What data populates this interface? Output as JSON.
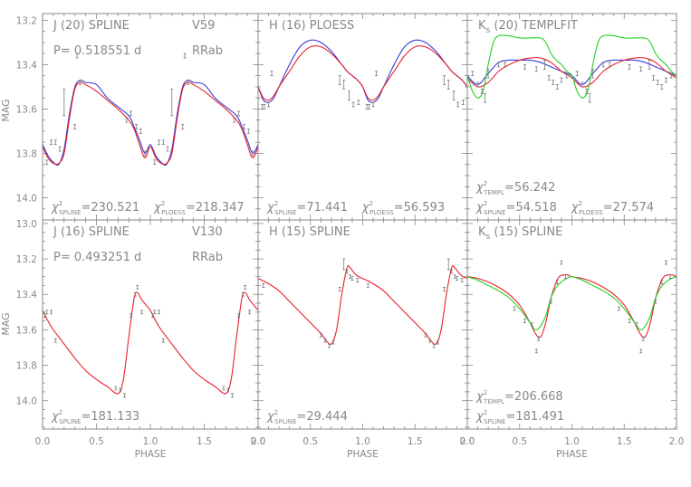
{
  "figure": {
    "ylabel": "MAG",
    "xlabel": "PHASE",
    "y_ticks_top": [
      "13.2",
      "13.4",
      "13.6",
      "13.8",
      "14.0"
    ],
    "y_ticks_bottom": [
      "13.0",
      "13.2",
      "13.4",
      "13.6",
      "13.8",
      "14.0"
    ],
    "x_ticks": [
      "0.0",
      "0.5",
      "1.0",
      "1.5",
      "2.0"
    ]
  },
  "colors": {
    "spline": "#e8202a",
    "ploess": "#3c3cd8",
    "template": "#22d022",
    "frame": "#888888",
    "text": "#888888"
  },
  "chart_data": [
    {
      "type": "line",
      "row": 0,
      "col": 0,
      "xlim": [
        0,
        2
      ],
      "ylim": [
        14.1,
        13.2
      ],
      "labels": [
        {
          "text": "J (20) SPLINE"
        },
        {
          "text": "V59"
        },
        {
          "text": "P= 0.518551 d"
        },
        {
          "text": "RRab"
        }
      ],
      "chi_lines": [
        [
          {
            "base": "χ",
            "sub": "SPLINE",
            "val": "=230.521"
          },
          {
            "base": "χ",
            "sub": "PLOESS",
            "val": "=218.347"
          }
        ]
      ],
      "series": [
        {
          "color": "blue",
          "x": [
            0.0,
            0.05,
            0.1,
            0.15,
            0.2,
            0.25,
            0.3,
            0.35,
            0.4,
            0.5,
            0.6,
            0.7,
            0.8,
            0.85,
            0.9,
            0.95,
            1.0
          ],
          "y": [
            13.76,
            13.81,
            13.84,
            13.85,
            13.78,
            13.62,
            13.5,
            13.47,
            13.48,
            13.49,
            13.55,
            13.59,
            13.63,
            13.68,
            13.74,
            13.8,
            13.76
          ]
        },
        {
          "color": "red",
          "x": [
            0.0,
            0.05,
            0.1,
            0.15,
            0.2,
            0.25,
            0.3,
            0.35,
            0.4,
            0.5,
            0.6,
            0.7,
            0.8,
            0.85,
            0.9,
            0.95,
            1.0
          ],
          "y": [
            13.77,
            13.82,
            13.845,
            13.845,
            13.8,
            13.64,
            13.51,
            13.48,
            13.49,
            13.52,
            13.56,
            13.6,
            13.65,
            13.69,
            13.76,
            13.82,
            13.77
          ]
        }
      ],
      "points": {
        "x": [
          0.04,
          0.08,
          0.12,
          0.16,
          0.2,
          0.3,
          0.32,
          0.35,
          0.78,
          0.82,
          0.87,
          0.91,
          0.95
        ],
        "y": [
          13.84,
          13.75,
          13.75,
          13.78,
          13.57,
          13.68,
          13.36,
          13.48,
          13.65,
          13.62,
          13.68,
          13.7,
          13.8
        ],
        "err": [
          0.01,
          0.01,
          0.01,
          0.01,
          0.06,
          0.01,
          0.01,
          0.01,
          0.01,
          0.01,
          0.01,
          0.01,
          0.01
        ]
      }
    },
    {
      "type": "line",
      "row": 0,
      "col": 1,
      "xlim": [
        0,
        2
      ],
      "ylim": [
        14.1,
        13.2
      ],
      "labels": [
        {
          "text": "H (16) PLOESS"
        }
      ],
      "chi_lines": [
        [
          {
            "base": "χ",
            "sub": "SPLINE",
            "val": "=71.441"
          },
          {
            "base": "χ",
            "sub": "PLOESS",
            "val": "=56.593"
          }
        ]
      ],
      "series": [
        {
          "color": "blue",
          "x": [
            0.0,
            0.05,
            0.1,
            0.15,
            0.2,
            0.3,
            0.4,
            0.5,
            0.6,
            0.7,
            0.8,
            0.85,
            0.9,
            0.95,
            1.0
          ],
          "y": [
            13.5,
            13.56,
            13.57,
            13.55,
            13.5,
            13.4,
            13.32,
            13.29,
            13.3,
            13.34,
            13.4,
            13.43,
            13.45,
            13.47,
            13.5
          ]
        },
        {
          "color": "red",
          "x": [
            0.0,
            0.05,
            0.1,
            0.15,
            0.2,
            0.3,
            0.4,
            0.5,
            0.6,
            0.7,
            0.8,
            0.85,
            0.9,
            0.95,
            1.0
          ],
          "y": [
            13.5,
            13.55,
            13.56,
            13.54,
            13.5,
            13.43,
            13.36,
            13.32,
            13.32,
            13.35,
            13.4,
            13.43,
            13.45,
            13.47,
            13.5
          ]
        }
      ],
      "points": {
        "x": [
          0.04,
          0.06,
          0.1,
          0.13,
          0.78,
          0.82,
          0.87,
          0.91,
          0.96
        ],
        "y": [
          13.59,
          13.59,
          13.58,
          13.44,
          13.47,
          13.49,
          13.54,
          13.58,
          13.57
        ],
        "err": [
          0.01,
          0.01,
          0.01,
          0.01,
          0.02,
          0.02,
          0.02,
          0.01,
          0.01
        ]
      }
    },
    {
      "type": "line",
      "row": 0,
      "col": 2,
      "xlim": [
        0,
        2
      ],
      "ylim": [
        14.1,
        13.2
      ],
      "labels": [
        {
          "text": "K",
          "sub": "s",
          "rest": " (20) TEMPLFIT"
        }
      ],
      "chi_lines": [
        [
          {
            "base": "χ",
            "sub": "TEMPL",
            "val": "=56.242"
          }
        ],
        [
          {
            "base": "χ",
            "sub": "SPLINE",
            "val": "=54.518"
          },
          {
            "base": "χ",
            "sub": "PLOESS",
            "val": "=27.574"
          }
        ]
      ],
      "series": [
        {
          "color": "blue",
          "x": [
            0.0,
            0.1,
            0.2,
            0.3,
            0.4,
            0.5,
            0.6,
            0.7,
            0.8,
            0.9,
            1.0
          ],
          "y": [
            13.45,
            13.49,
            13.44,
            13.39,
            13.38,
            13.38,
            13.38,
            13.39,
            13.41,
            13.43,
            13.45
          ]
        },
        {
          "color": "red",
          "x": [
            0.0,
            0.1,
            0.2,
            0.3,
            0.4,
            0.5,
            0.6,
            0.7,
            0.8,
            0.9,
            1.0
          ],
          "y": [
            13.46,
            13.5,
            13.48,
            13.43,
            13.4,
            13.38,
            13.37,
            13.37,
            13.39,
            13.43,
            13.46
          ]
        },
        {
          "color": "green",
          "x": [
            0.0,
            0.05,
            0.1,
            0.15,
            0.2,
            0.25,
            0.3,
            0.4,
            0.5,
            0.6,
            0.7,
            0.75,
            0.8,
            0.85,
            0.9,
            0.95,
            1.0
          ],
          "y": [
            13.45,
            13.52,
            13.55,
            13.52,
            13.4,
            13.3,
            13.27,
            13.27,
            13.28,
            13.28,
            13.28,
            13.3,
            13.35,
            13.38,
            13.4,
            13.43,
            13.45
          ]
        }
      ],
      "points": {
        "x": [
          0.05,
          0.1,
          0.14,
          0.17,
          0.2,
          0.3,
          0.36,
          0.55,
          0.66,
          0.74,
          0.78,
          0.82,
          0.86,
          0.9,
          0.95
        ],
        "y": [
          13.44,
          13.49,
          13.52,
          13.55,
          13.44,
          13.4,
          13.4,
          13.41,
          13.42,
          13.4,
          13.46,
          13.48,
          13.5,
          13.47,
          13.45
        ],
        "err": [
          0.01,
          0.01,
          0.01,
          0.02,
          0.02,
          0.01,
          0.01,
          0.01,
          0.01,
          0.02,
          0.01,
          0.01,
          0.01,
          0.01,
          0.01
        ]
      }
    },
    {
      "type": "line",
      "row": 1,
      "col": 0,
      "xlim": [
        0,
        2
      ],
      "ylim": [
        14.1,
        13.0
      ],
      "labels": [
        {
          "text": "J (16) SPLINE"
        },
        {
          "text": "V130"
        },
        {
          "text": "P= 0.493251 d"
        },
        {
          "text": "RRab"
        }
      ],
      "chi_lines": [
        [
          {
            "base": "χ",
            "sub": "SPLINE",
            "val": "=181.133"
          }
        ]
      ],
      "series": [
        {
          "color": "red",
          "x": [
            0.0,
            0.05,
            0.1,
            0.15,
            0.2,
            0.3,
            0.4,
            0.5,
            0.6,
            0.7,
            0.75,
            0.8,
            0.85,
            0.88,
            0.92,
            0.96,
            1.0
          ],
          "y": [
            13.49,
            13.55,
            13.6,
            13.64,
            13.68,
            13.76,
            13.83,
            13.88,
            13.92,
            13.96,
            13.88,
            13.64,
            13.42,
            13.39,
            13.43,
            13.46,
            13.49
          ]
        }
      ],
      "points": {
        "x": [
          0.02,
          0.04,
          0.08,
          0.12,
          0.68,
          0.72,
          0.76,
          0.82,
          0.86,
          0.88,
          0.92
        ],
        "y": [
          13.52,
          13.5,
          13.5,
          13.66,
          13.93,
          13.94,
          13.97,
          13.52,
          13.4,
          13.36,
          13.5
        ],
        "err": [
          0.01,
          0.01,
          0.01,
          0.01,
          0.01,
          0.01,
          0.01,
          0.01,
          0.01,
          0.01,
          0.01
        ]
      }
    },
    {
      "type": "line",
      "row": 1,
      "col": 1,
      "xlim": [
        0,
        2
      ],
      "ylim": [
        14.1,
        13.0
      ],
      "labels": [
        {
          "text": "H (15) SPLINE"
        }
      ],
      "chi_lines": [
        [
          {
            "base": "χ",
            "sub": "SPLINE",
            "val": "=29.444"
          }
        ]
      ],
      "series": [
        {
          "color": "red",
          "x": [
            0.0,
            0.1,
            0.2,
            0.3,
            0.4,
            0.5,
            0.6,
            0.65,
            0.7,
            0.75,
            0.8,
            0.85,
            0.88,
            0.92,
            0.96,
            1.0
          ],
          "y": [
            13.31,
            13.34,
            13.38,
            13.44,
            13.5,
            13.56,
            13.62,
            13.66,
            13.68,
            13.6,
            13.4,
            13.25,
            13.25,
            13.28,
            13.3,
            13.31
          ]
        }
      ],
      "points": {
        "x": [
          0.05,
          0.6,
          0.64,
          0.68,
          0.72,
          0.78,
          0.82,
          0.85,
          0.88,
          0.9,
          0.95
        ],
        "y": [
          13.35,
          13.63,
          13.66,
          13.69,
          13.67,
          13.37,
          13.23,
          13.27,
          13.3,
          13.31,
          13.32
        ],
        "err": [
          0.01,
          0.01,
          0.01,
          0.01,
          0.01,
          0.01,
          0.03,
          0.01,
          0.01,
          0.01,
          0.01
        ]
      }
    },
    {
      "type": "line",
      "row": 1,
      "col": 2,
      "xlim": [
        0,
        2
      ],
      "ylim": [
        14.1,
        13.0
      ],
      "labels": [
        {
          "text": "K",
          "sub": "s",
          "rest": " (15) SPLINE"
        }
      ],
      "chi_lines": [
        [
          {
            "base": "χ",
            "sub": "TEMPL",
            "val": "=206.668"
          }
        ],
        [
          {
            "base": "χ",
            "sub": "SPLINE",
            "val": "=181.491"
          }
        ]
      ],
      "series": [
        {
          "color": "red",
          "x": [
            0.0,
            0.1,
            0.2,
            0.3,
            0.4,
            0.5,
            0.6,
            0.65,
            0.7,
            0.75,
            0.8,
            0.85,
            0.88,
            0.92,
            0.96,
            1.0
          ],
          "y": [
            13.3,
            13.31,
            13.33,
            13.36,
            13.4,
            13.46,
            13.56,
            13.62,
            13.64,
            13.56,
            13.42,
            13.33,
            13.3,
            13.29,
            13.29,
            13.3
          ]
        },
        {
          "color": "green",
          "x": [
            0.0,
            0.1,
            0.2,
            0.3,
            0.4,
            0.5,
            0.6,
            0.65,
            0.7,
            0.75,
            0.8,
            0.85,
            0.9,
            0.95,
            1.0
          ],
          "y": [
            13.3,
            13.32,
            13.35,
            13.38,
            13.42,
            13.48,
            13.56,
            13.6,
            13.58,
            13.52,
            13.42,
            13.36,
            13.33,
            13.31,
            13.3
          ]
        }
      ],
      "points": {
        "x": [
          0.45,
          0.55,
          0.62,
          0.66,
          0.68,
          0.8,
          0.86,
          0.9,
          0.94
        ],
        "y": [
          13.48,
          13.55,
          13.57,
          13.72,
          13.65,
          13.44,
          13.33,
          13.22,
          13.3
        ],
        "err": [
          0.01,
          0.01,
          0.01,
          0.01,
          0.01,
          0.01,
          0.01,
          0.01,
          0.01
        ]
      }
    }
  ]
}
